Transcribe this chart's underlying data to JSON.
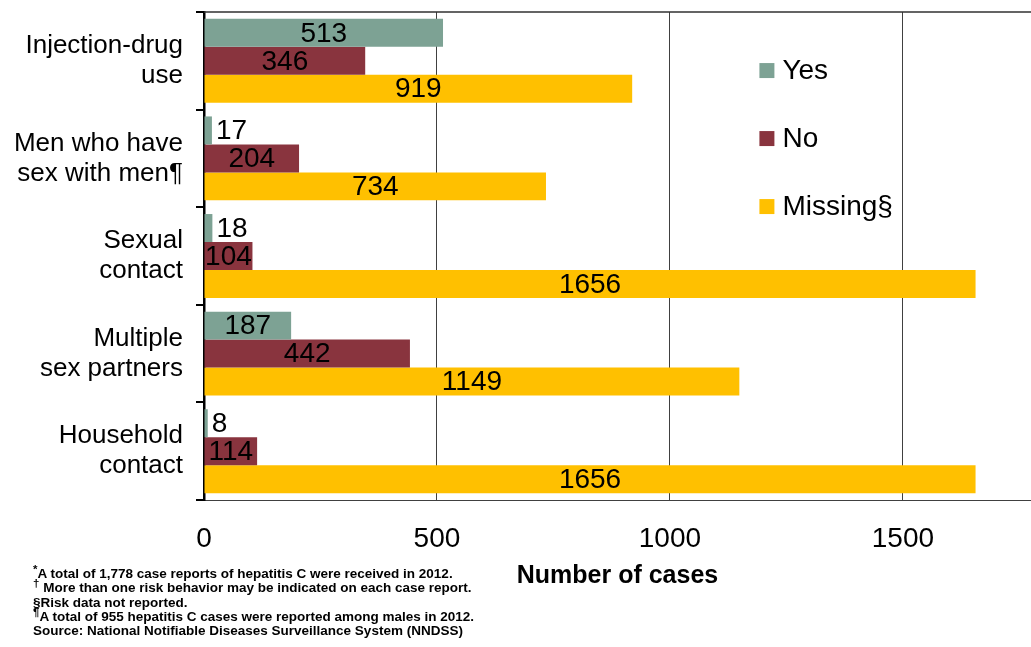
{
  "chart_data": {
    "type": "bar",
    "orientation": "horizontal",
    "categories": [
      "Injection-drug use",
      "Men who have sex with men¶",
      "Sexual contact",
      "Multiple sex partners",
      "Household contact"
    ],
    "series": [
      {
        "name": "Yes",
        "color": "#7da294",
        "values": [
          513,
          17,
          18,
          187,
          8
        ]
      },
      {
        "name": "No",
        "color": "#89343e",
        "values": [
          346,
          204,
          104,
          442,
          114
        ]
      },
      {
        "name": "Missing§",
        "color": "#ffc000",
        "values": [
          919,
          734,
          1656,
          1149,
          1656
        ]
      }
    ],
    "xlabel": "Number of cases",
    "xlim": [
      0,
      1775
    ],
    "xticks": [
      0,
      500,
      1000,
      1500
    ],
    "grid": "x",
    "legend": "top right",
    "data_labels": true,
    "annotations": [
      "$^{*}$A total of 1,778 case reports of hepatitis C were received in 2012.",
      "$^{†}$ More than one risk behavior may be indicated on each case report.",
      "§Risk data not reported.",
      "$^{¶}$A total of 955 hepatitis C cases were reported among males in 2012.",
      "Source: National Notifiable Diseases Surveillance System (NNDSS)"
    ]
  }
}
